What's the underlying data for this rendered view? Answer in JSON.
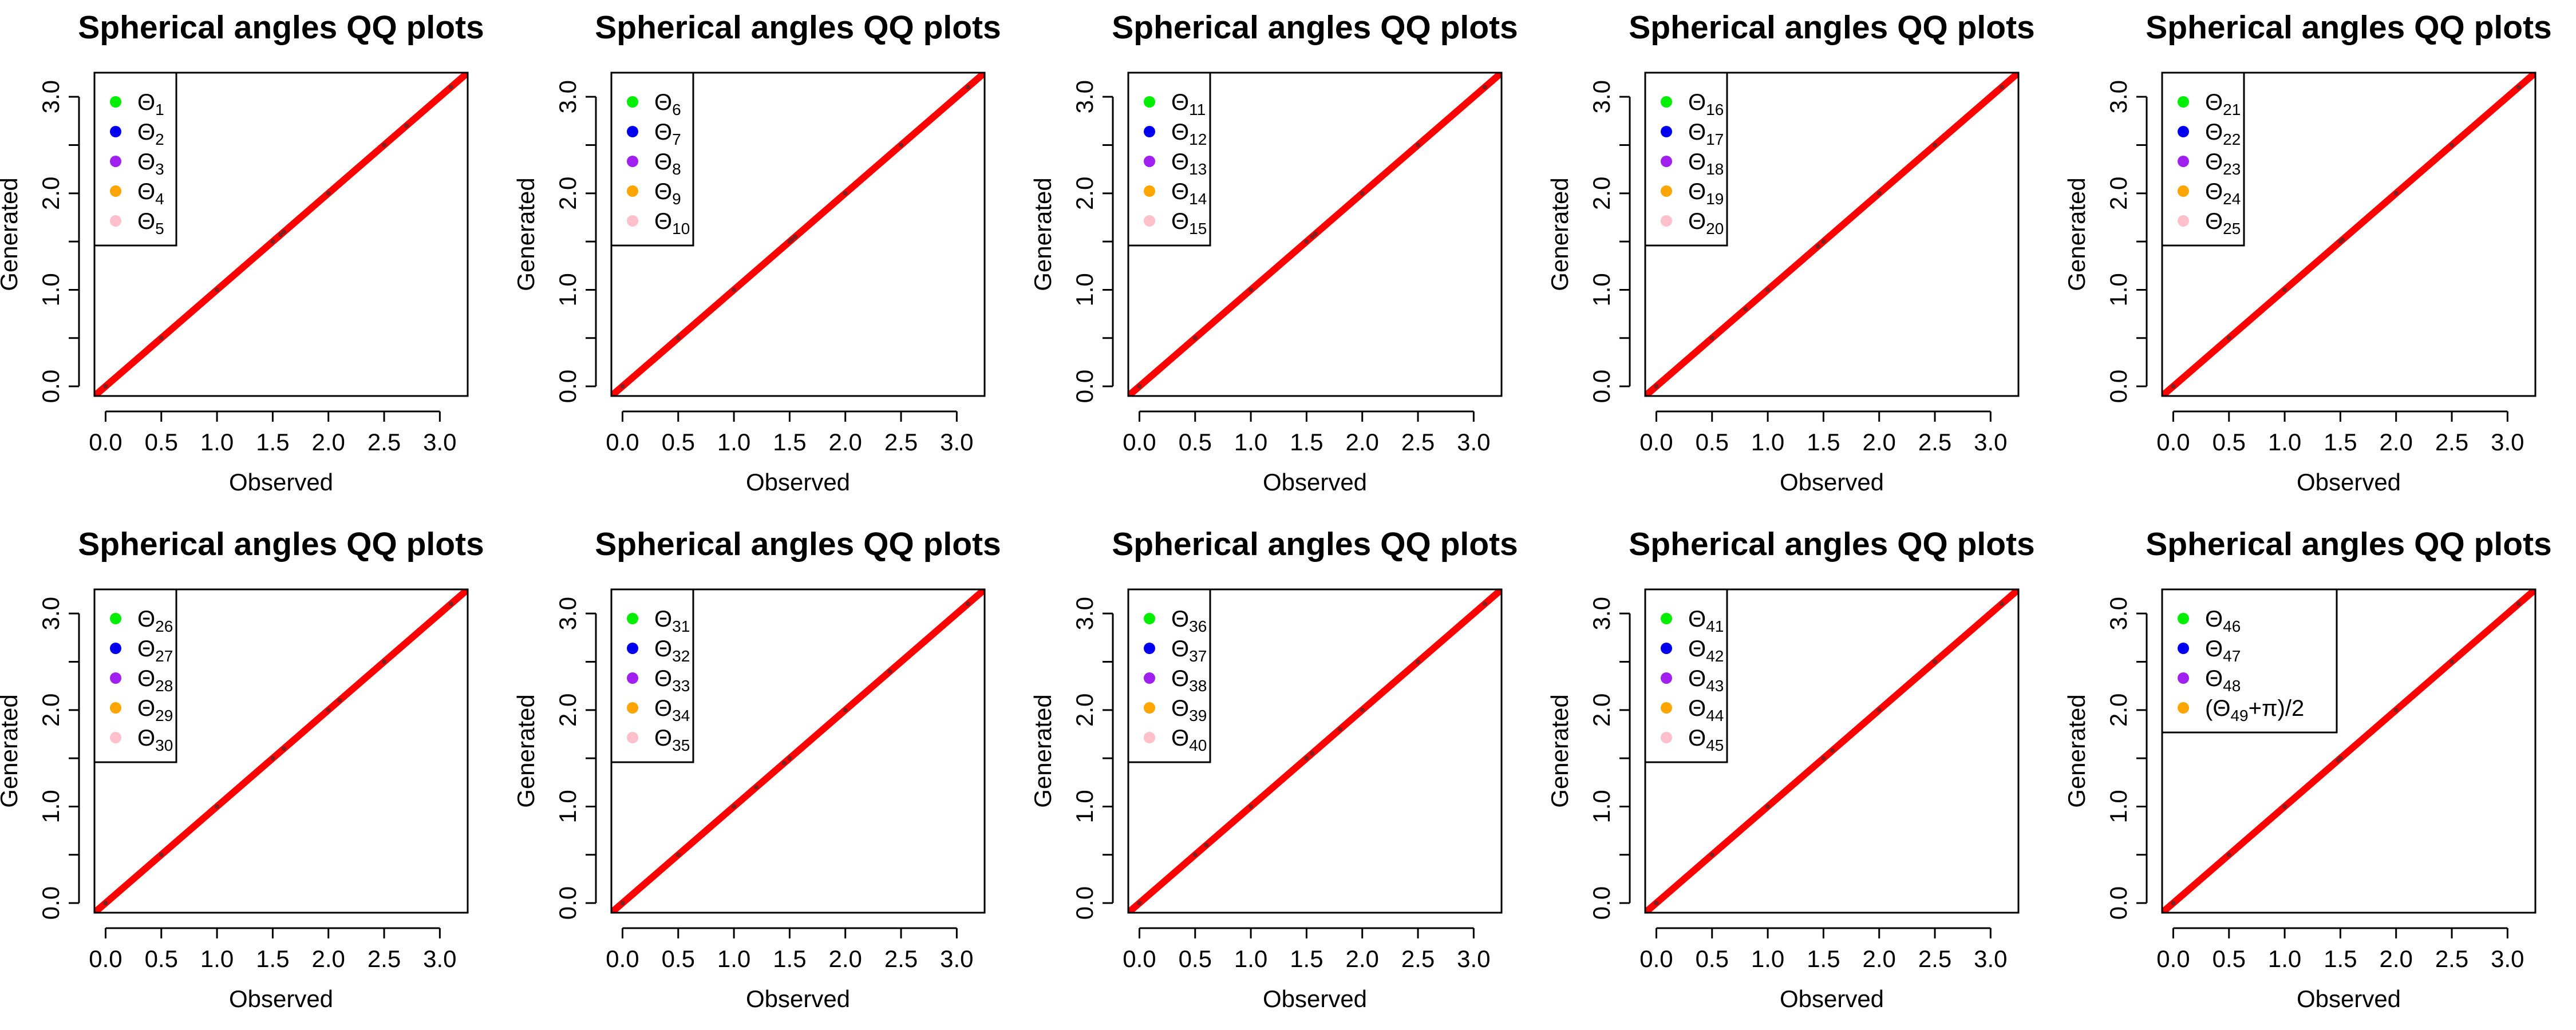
{
  "colors": {
    "reference_line": "#ff0000",
    "points": "#7f1f1f",
    "legend_markers": [
      "#00ee00",
      "#0000ee",
      "#a020f0",
      "#ffa500",
      "#ffc0cb"
    ]
  },
  "chart_data": [
    {
      "type": "scatter",
      "title": "Spherical angles QQ plots",
      "xlabel": "Observed",
      "ylabel": "Generated",
      "xlim": [
        -0.1,
        3.25
      ],
      "ylim": [
        -0.1,
        3.25
      ],
      "xticks": [
        "0.0",
        "0.5",
        "1.0",
        "1.5",
        "2.0",
        "2.5",
        "3.0"
      ],
      "yticks": [
        "0.0",
        "1.0",
        "2.0",
        "3.0"
      ],
      "grid": false,
      "legend_position": "top-left",
      "legend": [
        {
          "base": "Θ",
          "sub": "1",
          "color": "#00ee00"
        },
        {
          "base": "Θ",
          "sub": "2",
          "color": "#0000ee"
        },
        {
          "base": "Θ",
          "sub": "3",
          "color": "#a020f0"
        },
        {
          "base": "Θ",
          "sub": "4",
          "color": "#ffa500"
        },
        {
          "base": "Θ",
          "sub": "5",
          "color": "#ffc0cb"
        }
      ],
      "reference_line": {
        "from": [
          0,
          0
        ],
        "to": [
          3.14159,
          3.14159
        ]
      },
      "points": {
        "x": [
          0.0,
          0.5,
          1.0,
          1.5,
          1.57,
          1.6,
          2.0,
          2.5,
          2.7,
          3.1
        ],
        "y": [
          0.0,
          0.5,
          1.0,
          1.5,
          1.57,
          1.6,
          2.0,
          2.5,
          2.7,
          3.1
        ]
      }
    },
    {
      "type": "scatter",
      "title": "Spherical angles QQ plots",
      "xlabel": "Observed",
      "ylabel": "Generated",
      "xlim": [
        -0.1,
        3.25
      ],
      "ylim": [
        -0.1,
        3.25
      ],
      "xticks": [
        "0.0",
        "0.5",
        "1.0",
        "1.5",
        "2.0",
        "2.5",
        "3.0"
      ],
      "yticks": [
        "0.0",
        "1.0",
        "2.0",
        "3.0"
      ],
      "grid": false,
      "legend_position": "top-left",
      "legend": [
        {
          "base": "Θ",
          "sub": "6",
          "color": "#00ee00"
        },
        {
          "base": "Θ",
          "sub": "7",
          "color": "#0000ee"
        },
        {
          "base": "Θ",
          "sub": "8",
          "color": "#a020f0"
        },
        {
          "base": "Θ",
          "sub": "9",
          "color": "#ffa500"
        },
        {
          "base": "Θ",
          "sub": "10",
          "color": "#ffc0cb"
        }
      ],
      "reference_line": {
        "from": [
          0,
          0
        ],
        "to": [
          3.14159,
          3.14159
        ]
      },
      "points": {
        "x": [
          0.0,
          0.5,
          1.0,
          1.5,
          1.52,
          1.55,
          2.0,
          2.5,
          3.1
        ],
        "y": [
          0.0,
          0.5,
          1.0,
          1.5,
          1.52,
          1.55,
          2.0,
          2.5,
          3.1
        ]
      }
    },
    {
      "type": "scatter",
      "title": "Spherical angles QQ plots",
      "xlabel": "Observed",
      "ylabel": "Generated",
      "xlim": [
        -0.1,
        3.25
      ],
      "ylim": [
        -0.1,
        3.25
      ],
      "xticks": [
        "0.0",
        "0.5",
        "1.0",
        "1.5",
        "2.0",
        "2.5",
        "3.0"
      ],
      "yticks": [
        "0.0",
        "1.0",
        "2.0",
        "3.0"
      ],
      "grid": false,
      "legend_position": "top-left",
      "legend": [
        {
          "base": "Θ",
          "sub": "11",
          "color": "#00ee00"
        },
        {
          "base": "Θ",
          "sub": "12",
          "color": "#0000ee"
        },
        {
          "base": "Θ",
          "sub": "13",
          "color": "#a020f0"
        },
        {
          "base": "Θ",
          "sub": "14",
          "color": "#ffa500"
        },
        {
          "base": "Θ",
          "sub": "15",
          "color": "#ffc0cb"
        }
      ],
      "reference_line": {
        "from": [
          0,
          0
        ],
        "to": [
          3.14159,
          3.14159
        ]
      },
      "points": {
        "x": [
          0.0,
          0.5,
          1.0,
          1.5,
          1.55,
          1.58,
          2.0,
          2.5,
          3.1
        ],
        "y": [
          0.0,
          0.5,
          1.0,
          1.5,
          1.55,
          1.58,
          2.0,
          2.5,
          3.1
        ]
      }
    },
    {
      "type": "scatter",
      "title": "Spherical angles QQ plots",
      "xlabel": "Observed",
      "ylabel": "Generated",
      "xlim": [
        -0.1,
        3.25
      ],
      "ylim": [
        -0.1,
        3.25
      ],
      "xticks": [
        "0.0",
        "0.5",
        "1.0",
        "1.5",
        "2.0",
        "2.5",
        "3.0"
      ],
      "yticks": [
        "0.0",
        "1.0",
        "2.0",
        "3.0"
      ],
      "grid": false,
      "legend_position": "top-left",
      "legend": [
        {
          "base": "Θ",
          "sub": "16",
          "color": "#00ee00"
        },
        {
          "base": "Θ",
          "sub": "17",
          "color": "#0000ee"
        },
        {
          "base": "Θ",
          "sub": "18",
          "color": "#a020f0"
        },
        {
          "base": "Θ",
          "sub": "19",
          "color": "#ffa500"
        },
        {
          "base": "Θ",
          "sub": "20",
          "color": "#ffc0cb"
        }
      ],
      "reference_line": {
        "from": [
          0,
          0
        ],
        "to": [
          3.14159,
          3.14159
        ]
      },
      "points": {
        "x": [
          0.0,
          0.5,
          0.8,
          1.0,
          1.45,
          1.5,
          2.0,
          2.5,
          3.1
        ],
        "y": [
          0.0,
          0.5,
          0.8,
          1.0,
          1.45,
          1.5,
          2.0,
          2.5,
          3.1
        ]
      }
    },
    {
      "type": "scatter",
      "title": "Spherical angles QQ plots",
      "xlabel": "Observed",
      "ylabel": "Generated",
      "xlim": [
        -0.1,
        3.25
      ],
      "ylim": [
        -0.1,
        3.25
      ],
      "xticks": [
        "0.0",
        "0.5",
        "1.0",
        "1.5",
        "2.0",
        "2.5",
        "3.0"
      ],
      "yticks": [
        "0.0",
        "1.0",
        "2.0",
        "3.0"
      ],
      "grid": false,
      "legend_position": "top-left",
      "legend": [
        {
          "base": "Θ",
          "sub": "21",
          "color": "#00ee00"
        },
        {
          "base": "Θ",
          "sub": "22",
          "color": "#0000ee"
        },
        {
          "base": "Θ",
          "sub": "23",
          "color": "#a020f0"
        },
        {
          "base": "Θ",
          "sub": "24",
          "color": "#ffa500"
        },
        {
          "base": "Θ",
          "sub": "25",
          "color": "#ffc0cb"
        }
      ],
      "reference_line": {
        "from": [
          0,
          0
        ],
        "to": [
          3.14159,
          3.14159
        ]
      },
      "points": {
        "x": [
          0.0,
          0.5,
          1.0,
          1.5,
          1.52,
          2.0,
          2.5,
          3.1
        ],
        "y": [
          0.0,
          0.5,
          1.0,
          1.5,
          1.52,
          2.0,
          2.5,
          3.1
        ]
      }
    },
    {
      "type": "scatter",
      "title": "Spherical angles QQ plots",
      "xlabel": "Observed",
      "ylabel": "Generated",
      "xlim": [
        -0.1,
        3.25
      ],
      "ylim": [
        -0.1,
        3.25
      ],
      "xticks": [
        "0.0",
        "0.5",
        "1.0",
        "1.5",
        "2.0",
        "2.5",
        "3.0"
      ],
      "yticks": [
        "0.0",
        "1.0",
        "2.0",
        "3.0"
      ],
      "grid": false,
      "legend_position": "top-left",
      "legend": [
        {
          "base": "Θ",
          "sub": "26",
          "color": "#00ee00"
        },
        {
          "base": "Θ",
          "sub": "27",
          "color": "#0000ee"
        },
        {
          "base": "Θ",
          "sub": "28",
          "color": "#a020f0"
        },
        {
          "base": "Θ",
          "sub": "29",
          "color": "#ffa500"
        },
        {
          "base": "Θ",
          "sub": "30",
          "color": "#ffc0cb"
        }
      ],
      "reference_line": {
        "from": [
          0,
          0
        ],
        "to": [
          3.14159,
          3.14159
        ]
      },
      "points": {
        "x": [
          0.0,
          0.5,
          1.0,
          1.5,
          1.6,
          2.0,
          2.1,
          2.5,
          3.1
        ],
        "y": [
          0.0,
          0.5,
          1.0,
          1.5,
          1.6,
          2.0,
          2.1,
          2.5,
          3.1
        ]
      }
    },
    {
      "type": "scatter",
      "title": "Spherical angles QQ plots",
      "xlabel": "Observed",
      "ylabel": "Generated",
      "xlim": [
        -0.1,
        3.25
      ],
      "ylim": [
        -0.1,
        3.25
      ],
      "xticks": [
        "0.0",
        "0.5",
        "1.0",
        "1.5",
        "2.0",
        "2.5",
        "3.0"
      ],
      "yticks": [
        "0.0",
        "1.0",
        "2.0",
        "3.0"
      ],
      "grid": false,
      "legend_position": "top-left",
      "legend": [
        {
          "base": "Θ",
          "sub": "31",
          "color": "#00ee00"
        },
        {
          "base": "Θ",
          "sub": "32",
          "color": "#0000ee"
        },
        {
          "base": "Θ",
          "sub": "33",
          "color": "#a020f0"
        },
        {
          "base": "Θ",
          "sub": "34",
          "color": "#ffa500"
        },
        {
          "base": "Θ",
          "sub": "35",
          "color": "#ffc0cb"
        }
      ],
      "reference_line": {
        "from": [
          0,
          0
        ],
        "to": [
          3.14159,
          3.14159
        ]
      },
      "points": {
        "x": [
          0.0,
          0.5,
          1.0,
          1.2,
          1.45,
          1.5,
          2.0,
          2.4,
          3.1
        ],
        "y": [
          0.0,
          0.5,
          1.0,
          1.2,
          1.45,
          1.5,
          2.0,
          2.4,
          3.1
        ]
      }
    },
    {
      "type": "scatter",
      "title": "Spherical angles QQ plots",
      "xlabel": "Observed",
      "ylabel": "Generated",
      "xlim": [
        -0.1,
        3.25
      ],
      "ylim": [
        -0.1,
        3.25
      ],
      "xticks": [
        "0.0",
        "0.5",
        "1.0",
        "1.5",
        "2.0",
        "2.5",
        "3.0"
      ],
      "yticks": [
        "0.0",
        "1.0",
        "2.0",
        "3.0"
      ],
      "grid": false,
      "legend_position": "top-left",
      "legend": [
        {
          "base": "Θ",
          "sub": "36",
          "color": "#00ee00"
        },
        {
          "base": "Θ",
          "sub": "37",
          "color": "#0000ee"
        },
        {
          "base": "Θ",
          "sub": "38",
          "color": "#a020f0"
        },
        {
          "base": "Θ",
          "sub": "39",
          "color": "#ffa500"
        },
        {
          "base": "Θ",
          "sub": "40",
          "color": "#ffc0cb"
        }
      ],
      "reference_line": {
        "from": [
          0,
          0
        ],
        "to": [
          3.14159,
          3.14159
        ]
      },
      "points": {
        "x": [
          0.0,
          0.5,
          0.6,
          1.0,
          1.5,
          1.55,
          1.8,
          2.0,
          2.5,
          3.1
        ],
        "y": [
          0.0,
          0.5,
          0.6,
          1.0,
          1.5,
          1.55,
          1.8,
          2.0,
          2.5,
          3.1
        ]
      }
    },
    {
      "type": "scatter",
      "title": "Spherical angles QQ plots",
      "xlabel": "Observed",
      "ylabel": "Generated",
      "xlim": [
        -0.1,
        3.25
      ],
      "ylim": [
        -0.1,
        3.25
      ],
      "xticks": [
        "0.0",
        "0.5",
        "1.0",
        "1.5",
        "2.0",
        "2.5",
        "3.0"
      ],
      "yticks": [
        "0.0",
        "1.0",
        "2.0",
        "3.0"
      ],
      "grid": false,
      "legend_position": "top-left",
      "legend": [
        {
          "base": "Θ",
          "sub": "41",
          "color": "#00ee00"
        },
        {
          "base": "Θ",
          "sub": "42",
          "color": "#0000ee"
        },
        {
          "base": "Θ",
          "sub": "43",
          "color": "#a020f0"
        },
        {
          "base": "Θ",
          "sub": "44",
          "color": "#ffa500"
        },
        {
          "base": "Θ",
          "sub": "45",
          "color": "#ffc0cb"
        }
      ],
      "reference_line": {
        "from": [
          0,
          0
        ],
        "to": [
          3.14159,
          3.14159
        ]
      },
      "points": {
        "x": [
          0.0,
          0.5,
          1.0,
          1.5,
          1.58,
          2.0,
          2.5,
          3.1
        ],
        "y": [
          0.0,
          0.5,
          1.0,
          1.5,
          1.58,
          2.0,
          2.5,
          3.1
        ]
      }
    },
    {
      "type": "scatter",
      "title": "Spherical angles QQ plots",
      "xlabel": "Observed",
      "ylabel": "Generated",
      "xlim": [
        -0.1,
        3.25
      ],
      "ylim": [
        -0.1,
        3.25
      ],
      "xticks": [
        "0.0",
        "0.5",
        "1.0",
        "1.5",
        "2.0",
        "2.5",
        "3.0"
      ],
      "yticks": [
        "0.0",
        "1.0",
        "2.0",
        "3.0"
      ],
      "grid": false,
      "legend_position": "top-left",
      "legend": [
        {
          "base": "Θ",
          "sub": "46",
          "color": "#00ee00"
        },
        {
          "base": "Θ",
          "sub": "47",
          "color": "#0000ee"
        },
        {
          "base": "Θ",
          "sub": "48",
          "color": "#a020f0"
        },
        {
          "base": "(Θ",
          "sub": "49",
          "suffix": "+π)/2",
          "color": "#ffa500"
        }
      ],
      "reference_line": {
        "from": [
          0,
          0
        ],
        "to": [
          3.14159,
          3.14159
        ]
      },
      "points": {
        "x": [
          0.0,
          0.5,
          1.0,
          1.48,
          1.5,
          2.0,
          2.5,
          3.1
        ],
        "y": [
          0.0,
          0.5,
          1.0,
          1.48,
          1.5,
          2.0,
          2.5,
          3.1
        ]
      }
    }
  ]
}
